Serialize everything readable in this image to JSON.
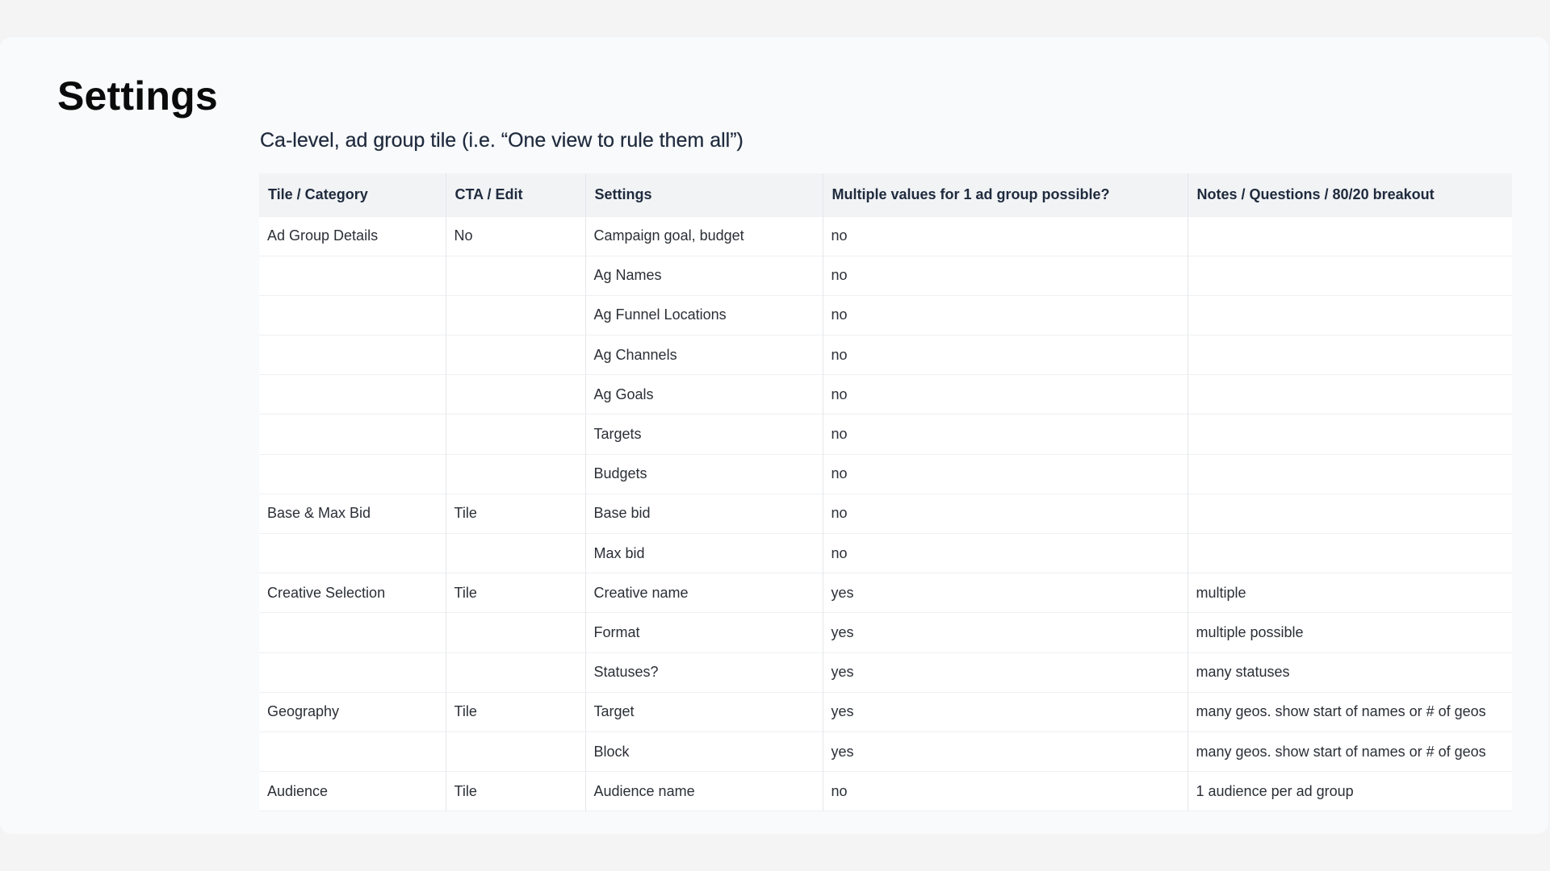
{
  "page": {
    "title": "Settings"
  },
  "table": {
    "title": "Ca-level, ad group tile (i.e. “One view to rule them all”)",
    "headers": [
      "Tile / Category",
      "CTA / Edit",
      "Settings",
      "Multiple values for 1 ad group possible?",
      "Notes / Questions / 80/20 breakout"
    ],
    "rows": [
      [
        "Ad Group Details",
        "No",
        "Campaign goal, budget",
        "no",
        ""
      ],
      [
        "",
        "",
        "Ag Names",
        "no",
        ""
      ],
      [
        "",
        "",
        "Ag Funnel Locations",
        "no",
        ""
      ],
      [
        "",
        "",
        "Ag Channels",
        "no",
        ""
      ],
      [
        "",
        "",
        "Ag Goals",
        "no",
        ""
      ],
      [
        "",
        "",
        "Targets",
        "no",
        ""
      ],
      [
        "",
        "",
        "Budgets",
        "no",
        ""
      ],
      [
        "Base & Max Bid",
        "Tile",
        "Base bid",
        "no",
        ""
      ],
      [
        "",
        "",
        "Max bid",
        "no",
        ""
      ],
      [
        "Creative Selection",
        "Tile",
        "Creative name",
        "yes",
        "multiple"
      ],
      [
        "",
        "",
        "Format",
        "yes",
        "multiple possible"
      ],
      [
        "",
        "",
        "Statuses?",
        "yes",
        "many statuses"
      ],
      [
        "Geography",
        "Tile",
        "Target",
        "yes",
        "many geos. show start of names or # of geos"
      ],
      [
        "",
        "",
        "Block",
        "yes",
        "many geos. show start of names or # of geos"
      ],
      [
        "Audience",
        "Tile",
        "Audience name",
        "no",
        "1 audience per ad group"
      ]
    ]
  }
}
